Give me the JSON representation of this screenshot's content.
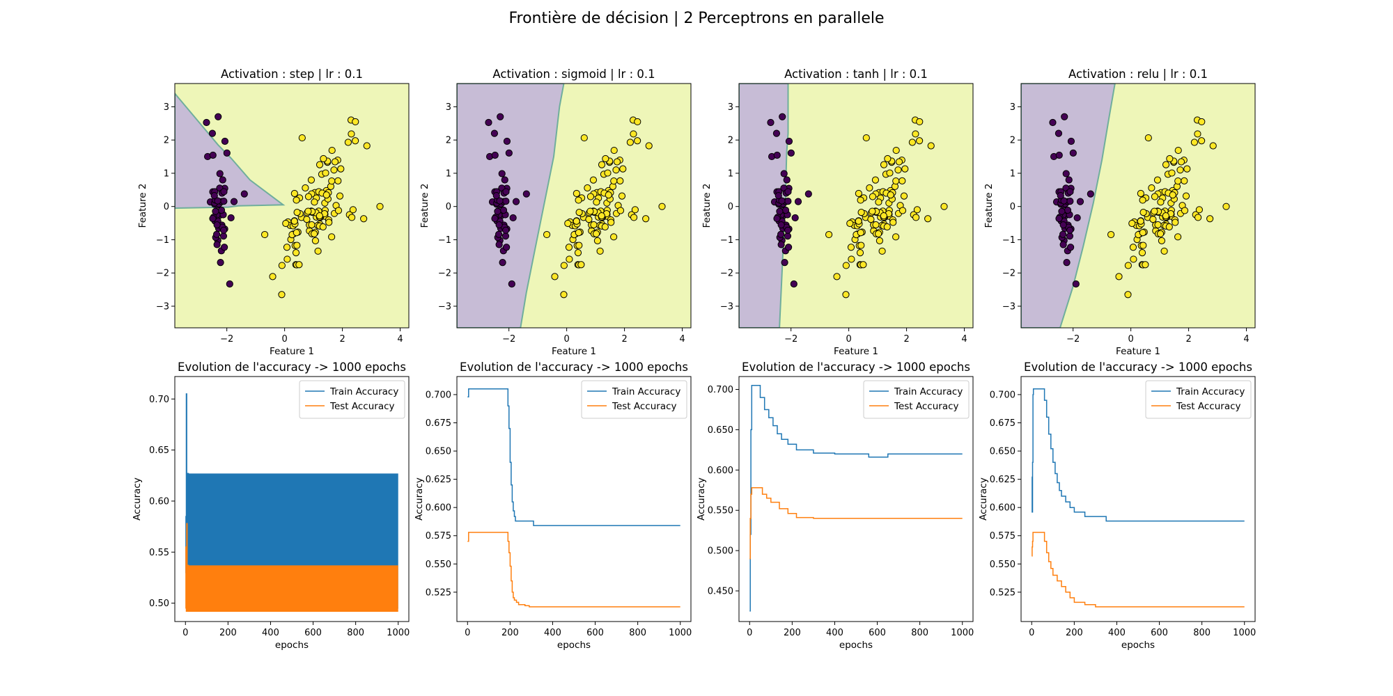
{
  "figure": {
    "suptitle": "Frontière de décision | 2 Perceptrons en parallele"
  },
  "colors": {
    "region_class0": "#c7bcd6",
    "region_class1": "#eef6b8",
    "boundary": "#6fae9c",
    "point_class0": "#440154",
    "point_class1": "#fde725",
    "train": "#1f77b4",
    "test": "#ff7f0e"
  },
  "chart_data": [
    {
      "type": "scatter",
      "title": "Activation : step | lr : 0.1",
      "xlabel": "Feature 1",
      "ylabel": "Feature 2",
      "xlim": [
        -3.8,
        4.3
      ],
      "ylim": [
        -3.65,
        3.7
      ],
      "xticks": [
        -2,
        0,
        2,
        4
      ],
      "yticks": [
        -3,
        -2,
        -1,
        0,
        1,
        2,
        3
      ],
      "class0_region": [
        [
          -3.8,
          3.4
        ],
        [
          -2.3,
          1.85
        ],
        [
          -1.85,
          1.45
        ],
        [
          -1.2,
          0.8
        ],
        [
          -0.05,
          0.05
        ],
        [
          -1.6,
          0.02
        ],
        [
          -1.95,
          -0.02
        ],
        [
          -3.8,
          -0.05
        ]
      ]
    },
    {
      "type": "scatter",
      "title": "Activation : sigmoid | lr : 0.1",
      "xlabel": "Feature 1",
      "ylabel": "Feature 2",
      "xlim": [
        -3.8,
        4.3
      ],
      "ylim": [
        -3.65,
        3.7
      ],
      "xticks": [
        -2,
        0,
        2,
        4
      ],
      "yticks": [
        -3,
        -2,
        -1,
        0,
        1,
        2,
        3
      ],
      "class0_region": [
        [
          -3.8,
          3.7
        ],
        [
          -0.1,
          3.7
        ],
        [
          -0.25,
          3.0
        ],
        [
          -0.45,
          1.5
        ],
        [
          -0.75,
          0.2
        ],
        [
          -1.1,
          -1.3
        ],
        [
          -1.4,
          -2.6
        ],
        [
          -1.6,
          -3.65
        ],
        [
          -3.8,
          -3.65
        ]
      ]
    },
    {
      "type": "scatter",
      "title": "Activation : tanh | lr : 0.1",
      "xlabel": "Feature 1",
      "ylabel": "Feature 2",
      "xlim": [
        -3.8,
        4.3
      ],
      "ylim": [
        -3.65,
        3.7
      ],
      "xticks": [
        -2,
        0,
        2,
        4
      ],
      "yticks": [
        -3,
        -2,
        -1,
        0,
        1,
        2,
        3
      ],
      "class0_region": [
        [
          -3.8,
          3.7
        ],
        [
          -2.1,
          3.7
        ],
        [
          -2.1,
          2.2
        ],
        [
          -2.15,
          1.6
        ],
        [
          -2.2,
          0.0
        ],
        [
          -2.25,
          -0.8
        ],
        [
          -2.3,
          -1.8
        ],
        [
          -2.4,
          -3.65
        ],
        [
          -3.8,
          -3.65
        ]
      ]
    },
    {
      "type": "scatter",
      "title": "Activation : relu | lr : 0.1",
      "xlabel": "Feature 1",
      "ylabel": "Feature 2",
      "xlim": [
        -3.8,
        4.3
      ],
      "ylim": [
        -3.65,
        3.7
      ],
      "xticks": [
        -2,
        0,
        2,
        4
      ],
      "yticks": [
        -3,
        -2,
        -1,
        0,
        1,
        2,
        3
      ],
      "class0_region": [
        [
          -3.8,
          3.7
        ],
        [
          -0.55,
          3.7
        ],
        [
          -0.75,
          2.7
        ],
        [
          -1.0,
          1.4
        ],
        [
          -1.3,
          0.1
        ],
        [
          -1.65,
          -1.2
        ],
        [
          -2.0,
          -2.4
        ],
        [
          -2.45,
          -3.65
        ],
        [
          -3.8,
          -3.65
        ]
      ]
    },
    {
      "type": "line",
      "title": "Evolution de l'accuracy -> 1000 epochs",
      "xlabel": "epochs",
      "ylabel": "Accuracy",
      "xlim": [
        -50,
        1050
      ],
      "ylim": [
        0.482,
        0.722
      ],
      "xticks": [
        0,
        200,
        400,
        600,
        800,
        1000
      ],
      "yticks": [
        0.5,
        0.55,
        0.6,
        0.65,
        0.7
      ],
      "legend": "upper right",
      "series": [
        {
          "name": "Train Accuracy",
          "x": [
            0,
            2,
            4,
            6,
            8,
            10,
            11,
            12,
            14
          ],
          "y": [
            0.585,
            0.53,
            0.705,
            0.55,
            0.52,
            0.627,
            0.495,
            0.627,
            0.495
          ],
          "band": {
            "x": [
              14,
              1000
            ],
            "y": [
              0.495,
              0.627
            ]
          }
        },
        {
          "name": "Test Accuracy",
          "x": [
            0,
            2,
            4,
            6,
            8,
            10,
            11,
            12,
            14
          ],
          "y": [
            0.495,
            0.555,
            0.492,
            0.578,
            0.498,
            0.537,
            0.492,
            0.537,
            0.492
          ],
          "band": {
            "x": [
              14,
              1000
            ],
            "y": [
              0.492,
              0.537
            ]
          }
        }
      ]
    },
    {
      "type": "line",
      "title": "Evolution de l'accuracy -> 1000 epochs",
      "xlabel": "epochs",
      "ylabel": "Accuracy",
      "xlim": [
        -50,
        1050
      ],
      "ylim": [
        0.499,
        0.716
      ],
      "xticks": [
        0,
        200,
        400,
        600,
        800,
        1000
      ],
      "yticks": [
        0.525,
        0.55,
        0.575,
        0.6,
        0.625,
        0.65,
        0.675,
        0.7
      ],
      "legend": "upper right",
      "series": [
        {
          "name": "Train Accuracy",
          "x": [
            0,
            5,
            10,
            185,
            190,
            195,
            200,
            205,
            210,
            215,
            220,
            225,
            230,
            300,
            310,
            1000
          ],
          "y": [
            0.698,
            0.705,
            0.705,
            0.705,
            0.69,
            0.67,
            0.64,
            0.62,
            0.605,
            0.597,
            0.592,
            0.588,
            0.588,
            0.588,
            0.584,
            0.584
          ]
        },
        {
          "name": "Test Accuracy",
          "x": [
            0,
            5,
            10,
            185,
            190,
            195,
            200,
            205,
            210,
            215,
            220,
            230,
            240,
            250,
            270,
            290,
            1000
          ],
          "y": [
            0.57,
            0.578,
            0.578,
            0.578,
            0.57,
            0.56,
            0.548,
            0.535,
            0.525,
            0.52,
            0.518,
            0.516,
            0.514,
            0.514,
            0.513,
            0.512,
            0.512
          ]
        }
      ]
    },
    {
      "type": "line",
      "title": "Evolution de l'accuracy -> 1000 epochs",
      "xlabel": "epochs",
      "ylabel": "Accuracy",
      "xlim": [
        -50,
        1050
      ],
      "ylim": [
        0.412,
        0.716
      ],
      "xticks": [
        0,
        200,
        400,
        600,
        800,
        1000
      ],
      "yticks": [
        0.45,
        0.5,
        0.55,
        0.6,
        0.65,
        0.7
      ],
      "legend": "upper right",
      "series": [
        {
          "name": "Train Accuracy",
          "x": [
            0,
            3,
            6,
            10,
            15,
            30,
            50,
            70,
            90,
            110,
            130,
            150,
            180,
            220,
            300,
            400,
            520,
            560,
            650,
            1000
          ],
          "y": [
            0.425,
            0.52,
            0.65,
            0.705,
            0.705,
            0.705,
            0.69,
            0.675,
            0.665,
            0.655,
            0.645,
            0.638,
            0.632,
            0.625,
            0.621,
            0.62,
            0.62,
            0.616,
            0.62,
            0.62
          ]
        },
        {
          "name": "Test Accuracy",
          "x": [
            0,
            3,
            6,
            10,
            20,
            40,
            60,
            80,
            100,
            140,
            180,
            220,
            300,
            500,
            1000
          ],
          "y": [
            0.49,
            0.54,
            0.57,
            0.578,
            0.578,
            0.578,
            0.57,
            0.565,
            0.56,
            0.552,
            0.546,
            0.541,
            0.54,
            0.54,
            0.54
          ]
        }
      ]
    },
    {
      "type": "line",
      "title": "Evolution de l'accuracy -> 1000 epochs",
      "xlabel": "epochs",
      "ylabel": "Accuracy",
      "xlim": [
        -50,
        1050
      ],
      "ylim": [
        0.499,
        0.716
      ],
      "xticks": [
        0,
        200,
        400,
        600,
        800,
        1000
      ],
      "yticks": [
        0.525,
        0.55,
        0.575,
        0.6,
        0.625,
        0.65,
        0.675,
        0.7
      ],
      "legend": "upper right",
      "series": [
        {
          "name": "Train Accuracy",
          "x": [
            0,
            2,
            4,
            6,
            8,
            10,
            15,
            30,
            50,
            60,
            70,
            80,
            90,
            100,
            110,
            120,
            130,
            140,
            160,
            180,
            200,
            250,
            330,
            350,
            1000
          ],
          "y": [
            0.627,
            0.596,
            0.64,
            0.7,
            0.705,
            0.705,
            0.705,
            0.705,
            0.705,
            0.695,
            0.68,
            0.665,
            0.652,
            0.64,
            0.63,
            0.622,
            0.615,
            0.61,
            0.605,
            0.6,
            0.596,
            0.592,
            0.592,
            0.588,
            0.588
          ]
        },
        {
          "name": "Test Accuracy",
          "x": [
            0,
            2,
            4,
            6,
            10,
            30,
            50,
            60,
            70,
            80,
            90,
            100,
            120,
            140,
            160,
            180,
            200,
            250,
            300,
            1000
          ],
          "y": [
            0.557,
            0.565,
            0.57,
            0.578,
            0.578,
            0.578,
            0.578,
            0.57,
            0.56,
            0.552,
            0.546,
            0.54,
            0.535,
            0.53,
            0.525,
            0.52,
            0.516,
            0.514,
            0.512,
            0.512
          ]
        }
      ]
    }
  ]
}
